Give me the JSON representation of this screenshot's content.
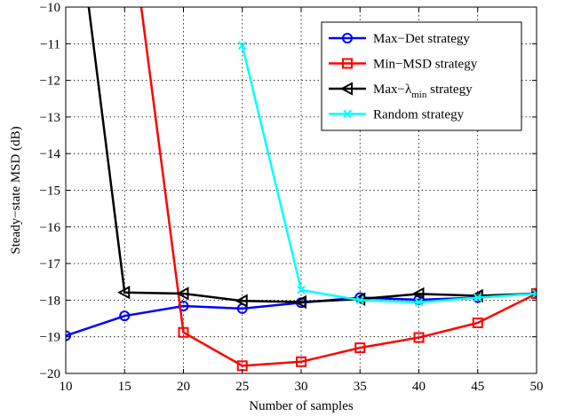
{
  "chart_data": {
    "type": "line",
    "title": "",
    "xlabel": "Number of samples",
    "ylabel": "Steady−state MSD (dB)",
    "xlim": [
      10,
      50
    ],
    "ylim": [
      -20,
      -10
    ],
    "xticks": [
      10,
      15,
      20,
      25,
      30,
      35,
      40,
      45,
      50
    ],
    "yticks": [
      -20,
      -19,
      -18,
      -17,
      -16,
      -15,
      -14,
      -13,
      -12,
      -11,
      -10
    ],
    "xtick_labels": [
      "10",
      "15",
      "20",
      "25",
      "30",
      "35",
      "40",
      "45",
      "50"
    ],
    "ytick_labels": [
      "−20",
      "−19",
      "−18",
      "−17",
      "−16",
      "−15",
      "−14",
      "−13",
      "−12",
      "−11",
      "−10"
    ],
    "grid": true,
    "legend_position": "top-right",
    "x": [
      10,
      15,
      20,
      25,
      30,
      35,
      40,
      45,
      50
    ],
    "series": [
      {
        "name": "Max−Det strategy",
        "color": "#0000ff",
        "marker": "circle",
        "values": [
          -18.97,
          -18.43,
          -18.16,
          -18.23,
          -18.07,
          -17.93,
          -17.99,
          -17.93,
          -17.81
        ]
      },
      {
        "name": "Min−MSD strategy",
        "color": "#ff0000",
        "marker": "square",
        "values": [
          null,
          -6.5,
          -18.88,
          -19.79,
          -19.68,
          -19.3,
          -19.02,
          -18.62,
          -17.82
        ]
      },
      {
        "name": "Max−λ min strategy",
        "name_main": "Max−λ",
        "name_sub": "min",
        "name_tail": " strategy",
        "color": "#000000",
        "marker": "triangle-left",
        "values": [
          -5.0,
          -17.79,
          -17.82,
          -18.02,
          -18.05,
          -17.97,
          -17.83,
          -17.88,
          -17.82
        ]
      },
      {
        "name": "Random strategy",
        "color": "#00ffff",
        "marker": "x",
        "values": [
          null,
          null,
          null,
          -11.05,
          -17.72,
          -18.0,
          -18.06,
          -17.93,
          -17.82
        ]
      }
    ]
  }
}
